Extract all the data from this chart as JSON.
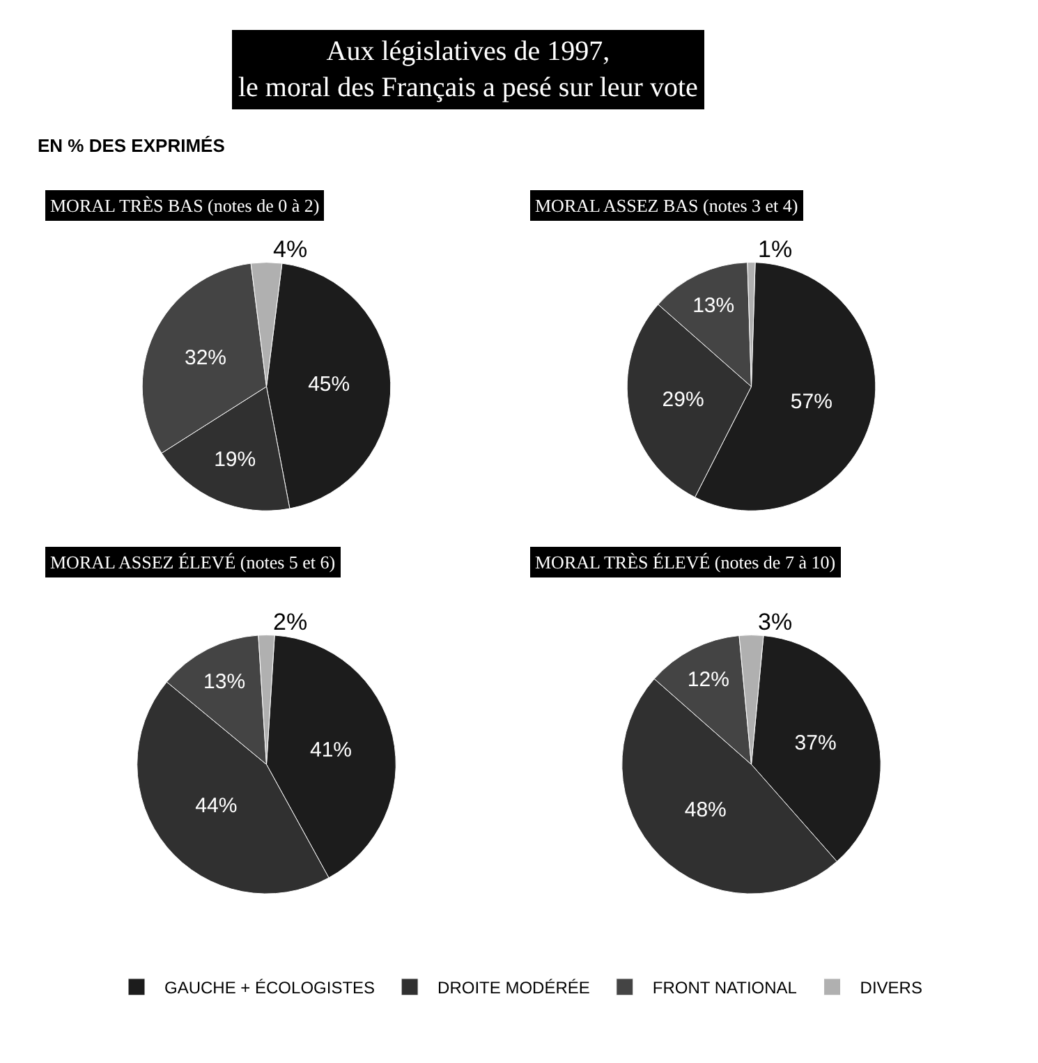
{
  "chart_data": [
    {
      "type": "other",
      "title": "Aux législatives de 1997,\nle moral des Français a pesé sur leur vote",
      "subtitle": "EN % DES EXPRIMÉS"
    },
    {
      "type": "pie",
      "title": "MORAL TRÈS BAS (notes de 0 à 2)",
      "categories": [
        "GAUCHE + ÉCOLOGISTES",
        "DROITE MODÉRÉE",
        "FRONT NATIONAL",
        "DIVERS"
      ],
      "values": [
        45,
        19,
        32,
        4
      ],
      "value_labels": [
        "45%",
        "19%",
        "32%",
        "4%"
      ],
      "colors": [
        "#1c1c1c",
        "#303030",
        "#444444",
        "#b0b0b0"
      ],
      "legend": "bottom"
    },
    {
      "type": "pie",
      "title": "MORAL ASSEZ BAS (notes 3 et 4)",
      "categories": [
        null,
        null,
        null,
        null
      ],
      "values": [
        57,
        29,
        13,
        1
      ],
      "value_labels": [
        "57%",
        "29%",
        "13%",
        "1%"
      ],
      "colors": [
        "#1c1c1c",
        "#303030",
        "#444444",
        "#b0b0b0"
      ]
    },
    {
      "type": "pie",
      "title": "MORAL ASSEZ ÉLEVÉ (notes 5 et 6)",
      "categories": [
        null,
        null,
        null,
        null
      ],
      "values": [
        41,
        44,
        13,
        2
      ],
      "value_labels": [
        "41%",
        "44%",
        "13%",
        "2%"
      ],
      "colors": [
        "#1c1c1c",
        "#303030",
        "#444444",
        "#b0b0b0"
      ]
    },
    {
      "type": "pie",
      "title": "MORAL TRÈS ÉLEVÉ (notes de 7 à 10)",
      "categories": [
        null,
        null,
        null,
        null
      ],
      "values": [
        37,
        48,
        12,
        3
      ],
      "value_labels": [
        "37%",
        "48%",
        "12%",
        "3%"
      ],
      "colors": [
        "#1c1c1c",
        "#303030",
        "#444444",
        "#b0b0b0"
      ]
    }
  ]
}
